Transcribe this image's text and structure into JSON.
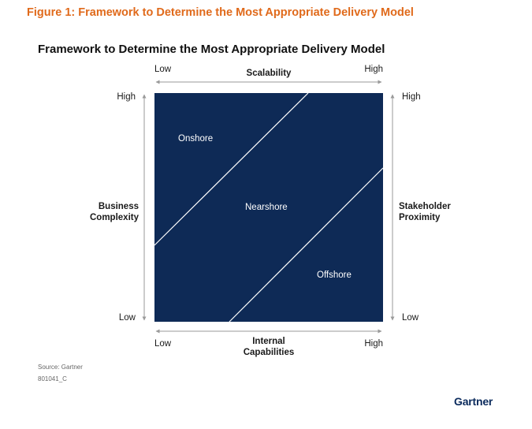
{
  "figure_title": "Figure 1: Framework to Determine the Most Appropriate Delivery Model",
  "chart_title": "Framework to Determine the Most Appropriate Delivery Model",
  "top_axis": {
    "low": "Low",
    "title": "Scalability",
    "high": "High"
  },
  "bottom_axis": {
    "low": "Low",
    "title_line1": "Internal",
    "title_line2": "Capabilities",
    "high": "High"
  },
  "left_axis": {
    "high": "High",
    "title_line1": "Business",
    "title_line2": "Complexity",
    "low": "Low"
  },
  "right_axis": {
    "high": "High",
    "title_line1": "Stakeholder",
    "title_line2": "Proximity",
    "low": "Low"
  },
  "regions": {
    "onshore": "Onshore",
    "nearshore": "Nearshore",
    "offshore": "Offshore"
  },
  "source": "Source: Gartner",
  "code": "801041_C",
  "brand": "Gartner",
  "colors": {
    "panel": "#0e2a56",
    "title_accent": "#e06a1b",
    "lines": "#ffffff",
    "axis": "#9a9a9a"
  }
}
